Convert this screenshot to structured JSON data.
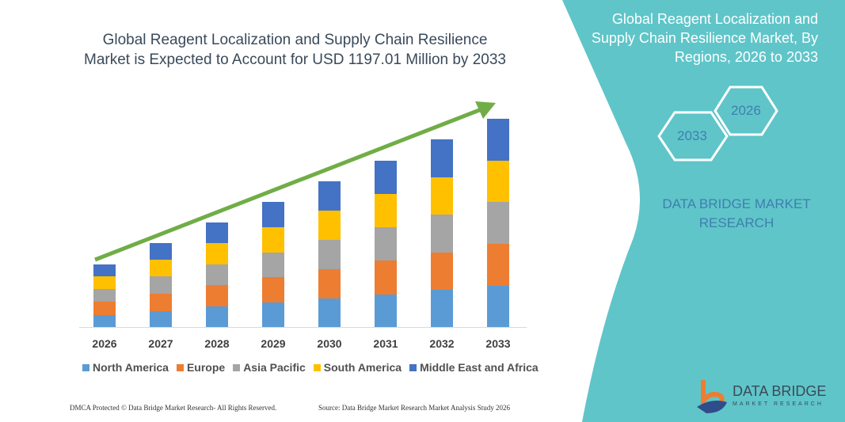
{
  "header": {
    "title": "Global Reagent Localization and Supply Chain Resilience Market is Expected to Account for USD 1197.01 Million by 2033"
  },
  "side": {
    "title": "Global Reagent Localization and Supply Chain Resilience Market, By Regions, 2026 to 2033",
    "hex_left": "2033",
    "hex_right": "2026",
    "brand": "DATA BRIDGE MARKET RESEARCH"
  },
  "footer": {
    "left": "DMCA Protected © Data Bridge Market Research- All Rights Reserved.",
    "right": "Source: Data Bridge Market Research Market Analysis Study 2026"
  },
  "logo": {
    "name": "DATA BRIDGE",
    "sub": "MARKET RESEARCH"
  },
  "colors": {
    "teal": "#5fc5c9",
    "arrow": "#70ad47"
  },
  "chart_data": {
    "type": "bar",
    "stacked": true,
    "categories": [
      "2026",
      "2027",
      "2028",
      "2029",
      "2030",
      "2031",
      "2032",
      "2033"
    ],
    "series": [
      {
        "name": "North America",
        "color": "#5b9bd5",
        "values": [
          15,
          20,
          26,
          31,
          36,
          41,
          47,
          52
        ]
      },
      {
        "name": "Europe",
        "color": "#ed7d31",
        "values": [
          17,
          22,
          27,
          32,
          37,
          43,
          47,
          53
        ]
      },
      {
        "name": "Asia Pacific",
        "color": "#a5a5a5",
        "values": [
          16,
          22,
          26,
          31,
          37,
          42,
          48,
          53
        ]
      },
      {
        "name": "South America",
        "color": "#ffc000",
        "values": [
          16,
          21,
          27,
          32,
          37,
          42,
          47,
          52
        ]
      },
      {
        "name": "Middle East and Africa",
        "color": "#4472c4",
        "values": [
          15,
          21,
          26,
          32,
          37,
          42,
          48,
          53
        ]
      }
    ],
    "ylim": [
      0,
      270
    ],
    "grid": false,
    "legend": "bottom",
    "trend_arrow": true
  }
}
